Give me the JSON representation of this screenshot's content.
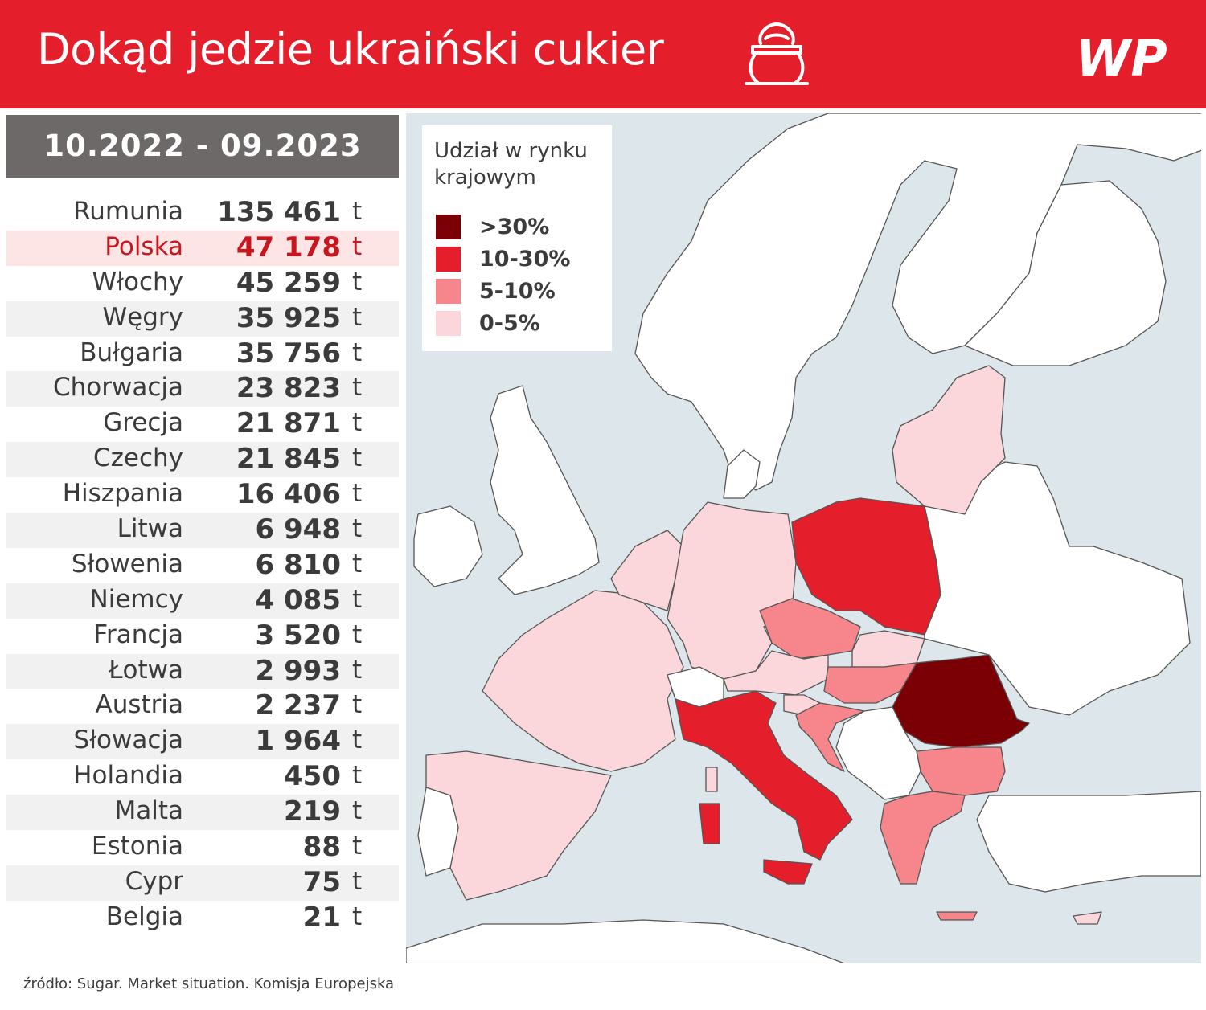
{
  "header": {
    "title": "Dokąd jedzie ukraiński cukier",
    "logo_text": "WP",
    "icon": "sugar-sack-icon"
  },
  "period": "10.2022 - 09.2023",
  "rows": [
    {
      "country": "Rumunia",
      "value": "135 461",
      "unit": "t",
      "tonnes": 135461
    },
    {
      "country": "Polska",
      "value": "47 178",
      "unit": "t",
      "tonnes": 47178,
      "highlighted": true
    },
    {
      "country": "Włochy",
      "value": "45 259",
      "unit": "t",
      "tonnes": 45259
    },
    {
      "country": "Węgry",
      "value": "35 925",
      "unit": "t",
      "tonnes": 35925
    },
    {
      "country": "Bułgaria",
      "value": "35 756",
      "unit": "t",
      "tonnes": 35756
    },
    {
      "country": "Chorwacja",
      "value": "23 823",
      "unit": "t",
      "tonnes": 23823
    },
    {
      "country": "Grecja",
      "value": "21 871",
      "unit": "t",
      "tonnes": 21871
    },
    {
      "country": "Czechy",
      "value": "21 845",
      "unit": "t",
      "tonnes": 21845
    },
    {
      "country": "Hiszpania",
      "value": "16 406",
      "unit": "t",
      "tonnes": 16406
    },
    {
      "country": "Litwa",
      "value": "6 948",
      "unit": "t",
      "tonnes": 6948
    },
    {
      "country": "Słowenia",
      "value": "6 810",
      "unit": "t",
      "tonnes": 6810
    },
    {
      "country": "Niemcy",
      "value": "4 085",
      "unit": "t",
      "tonnes": 4085
    },
    {
      "country": "Francja",
      "value": "3 520",
      "unit": "t",
      "tonnes": 3520
    },
    {
      "country": "Łotwa",
      "value": "2 993",
      "unit": "t",
      "tonnes": 2993
    },
    {
      "country": "Austria",
      "value": "2 237",
      "unit": "t",
      "tonnes": 2237
    },
    {
      "country": "Słowacja",
      "value": "1 964",
      "unit": "t",
      "tonnes": 1964
    },
    {
      "country": "Holandia",
      "value": "450",
      "unit": "t",
      "tonnes": 450
    },
    {
      "country": "Malta",
      "value": "219",
      "unit": "t",
      "tonnes": 219
    },
    {
      "country": "Estonia",
      "value": "88",
      "unit": "t",
      "tonnes": 88
    },
    {
      "country": "Cypr",
      "value": "75",
      "unit": "t",
      "tonnes": 75
    },
    {
      "country": "Belgia",
      "value": "21",
      "unit": "t",
      "tonnes": 21
    }
  ],
  "legend": {
    "title": "Udział w rynku krajowym",
    "items": [
      {
        "label": ">30%",
        "color": "#7a0006"
      },
      {
        "label": "10-30%",
        "color": "#e41e2b"
      },
      {
        "label": "5-10%",
        "color": "#f7868c"
      },
      {
        "label": "0-5%",
        "color": "#fbd6da"
      }
    ]
  },
  "map_categories": {
    "Rumunia": ">30%",
    "Polska": "10-30%",
    "Włochy": "10-30%",
    "Węgry": "5-10%",
    "Bułgaria": "5-10%",
    "Chorwacja": "5-10%",
    "Grecja": "5-10%",
    "Czechy": "5-10%",
    "Hiszpania": "0-5%",
    "Francja": "0-5%",
    "Niemcy": "0-5%",
    "Litwa": "0-5%",
    "Łotwa": "0-5%",
    "Estonia": "0-5%",
    "Słowacja": "0-5%",
    "Austria": "0-5%",
    "Słowenia": "0-5%",
    "Holandia": "0-5%",
    "Belgia": "0-5%",
    "Malta": "0-5%",
    "Cypr": "0-5%"
  },
  "colors": {
    "header": "#e41e2b",
    "sea": "#dde6ea",
    "land": "#ffffff",
    "border": "#555555"
  },
  "source": "źródło: Sugar. Market situation. Komisja Europejska"
}
